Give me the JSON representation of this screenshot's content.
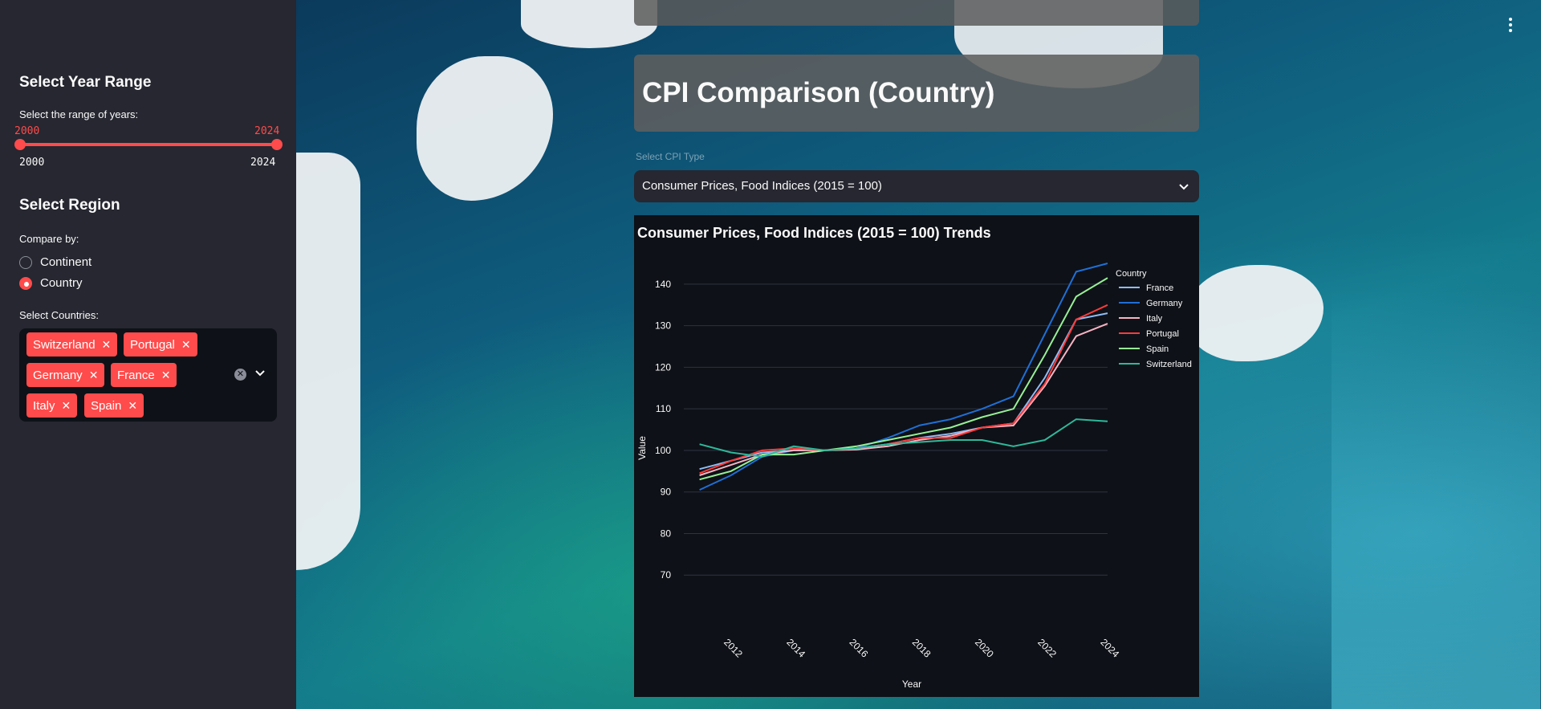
{
  "sidebar": {
    "year_section": {
      "heading": "Select Year Range",
      "label": "Select the range of years:",
      "selected_min": "2000",
      "selected_max": "2024",
      "range_min": "2000",
      "range_max": "2024"
    },
    "region_section": {
      "heading": "Select Region",
      "compare_label": "Compare by:",
      "options": [
        "Continent",
        "Country"
      ],
      "selected": "Country"
    },
    "countries": {
      "label": "Select Countries:",
      "tags": [
        "Switzerland",
        "Portugal",
        "Germany",
        "France",
        "Italy",
        "Spain"
      ]
    }
  },
  "main": {
    "page_title": "CPI Comparison (Country)",
    "select_label": "Select CPI Type",
    "select_value": "Consumer Prices, Food Indices (2015 = 100)",
    "chart_title": "Consumer Prices, Food Indices (2015 = 100) Trends"
  },
  "colors": {
    "accent": "#ff4b4b",
    "sidebar_bg": "#262730",
    "chart_bg": "#0e1117"
  },
  "icons": [
    "close-icon",
    "clear-icon",
    "chevron-down-icon",
    "more-vertical-icon"
  ],
  "chart_data": {
    "type": "line",
    "xlabel": "Year",
    "ylabel": "Value",
    "xlim": [
      2010.5,
      2024
    ],
    "ylim": [
      60,
      145
    ],
    "x_ticks": [
      "2012",
      "2014",
      "2016",
      "2018",
      "2020",
      "2022",
      "2024"
    ],
    "y_ticks": [
      "70",
      "80",
      "90",
      "100",
      "110",
      "120",
      "130",
      "140"
    ],
    "legend_title": "Country",
    "legend_position": "top-right",
    "grid": true,
    "x": [
      2011,
      2012,
      2013,
      2014,
      2015,
      2016,
      2017,
      2018,
      2019,
      2020,
      2021,
      2022,
      2023,
      2024
    ],
    "series": [
      {
        "name": "France",
        "color": "#8fbcf5",
        "values": [
          95.5,
          97.5,
          99.5,
          100,
          100,
          100.5,
          101.5,
          103,
          104,
          105.5,
          106.5,
          117.5,
          131.5,
          133
        ]
      },
      {
        "name": "Germany",
        "color": "#1f6fd6",
        "values": [
          90.5,
          94,
          98.5,
          100,
          100,
          100.5,
          103,
          106,
          107.5,
          110,
          113,
          128,
          143,
          145
        ]
      },
      {
        "name": "Italy",
        "color": "#f7b3c2",
        "values": [
          94,
          96.5,
          99,
          100,
          100,
          100.2,
          101,
          102.5,
          103.5,
          105.5,
          106,
          115.5,
          127.5,
          130.5
        ]
      },
      {
        "name": "Portugal",
        "color": "#ff3b3b",
        "values": [
          94.5,
          97.5,
          100,
          100.5,
          100,
          100.5,
          101.5,
          103,
          103,
          105.5,
          106.5,
          116,
          131.5,
          135
        ]
      },
      {
        "name": "Spain",
        "color": "#96f096",
        "values": [
          93,
          95,
          99,
          99,
          100,
          101,
          102.5,
          104,
          105.5,
          108,
          110,
          123,
          137,
          141.5
        ]
      },
      {
        "name": "Switzerland",
        "color": "#2eb89a",
        "values": [
          101.5,
          99.5,
          98.5,
          101,
          100,
          100.5,
          101.5,
          102,
          102.5,
          102.5,
          101,
          102.5,
          107.5,
          107
        ]
      }
    ]
  }
}
